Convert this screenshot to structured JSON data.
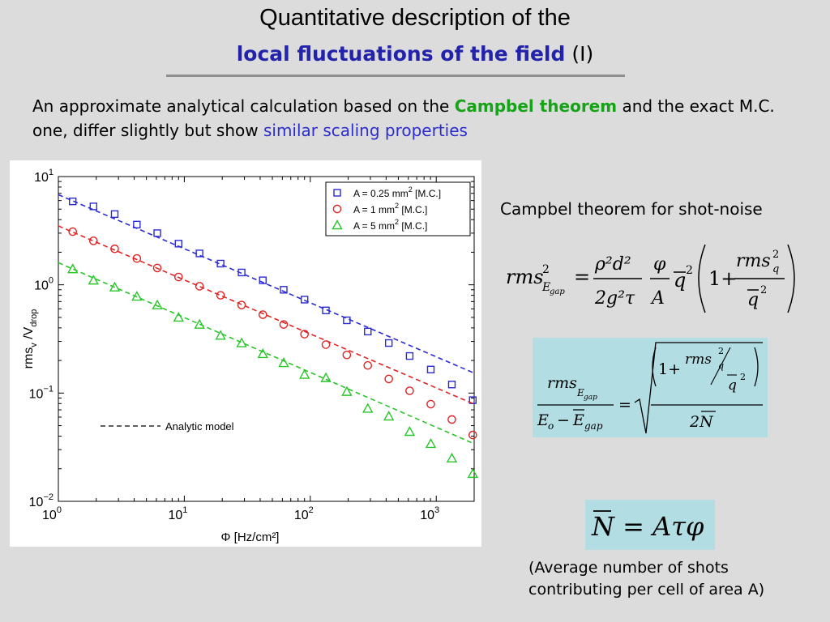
{
  "slide": {
    "title_line1": "Quantitative description of the",
    "title_line2_highlight": "local fluctuations of the field",
    "title_line2_suffix": "(I)",
    "intro_part1": "An approximate analytical calculation based on the ",
    "intro_green": "Campbel theorem",
    "intro_part2": " and the exact M.C. one, differ slightly but show ",
    "intro_blue": "similar scaling properties",
    "campbel_heading": "Campbel theorem for shot-noise",
    "note_line1": "(Average number of shots",
    "note_line2": "contributing per cell of area A)"
  },
  "formulas": {
    "f1_lhs": "rms",
    "f1_lhs_sub": "E",
    "f1_lhs_subsub": "gap",
    "f1_lhs_sup": "2",
    "f1_num1": "ρ²d²",
    "f1_den1": "2g²τ",
    "f1_num2": "φ",
    "f1_den2": "A",
    "f1_qbar": "q",
    "f1_qbar_exp": "2",
    "f1_one_plus": "1+",
    "f1_inner_num": "rms",
    "f1_inner_num_sub": "q",
    "f1_inner_num_sup": "2",
    "f1_inner_den": "q",
    "f1_inner_den_exp": "2",
    "f2_num": "rms",
    "f2_num_sub": "E",
    "f2_num_subsub": "gap",
    "f2_den_a": "E",
    "f2_den_a_sub": "o",
    "f2_den_minus": "−",
    "f2_den_b": "E",
    "f2_den_b_sub": "gap",
    "f2_sqrt_num_rms": "rms",
    "f2_sqrt_num_rms_sub": "q",
    "f2_sqrt_num_rms_sup": "2",
    "f2_sqrt_num_q": "q",
    "f2_sqrt_num_q_exp": "2",
    "f2_one_plus": "1+",
    "f2_sqrt_den": "2N",
    "f3": "N = Aτφ"
  },
  "chart_data": {
    "type": "scatter",
    "x_scale": "log",
    "y_scale": "log",
    "xlim": [
      1,
      2000
    ],
    "ylim": [
      0.01,
      10
    ],
    "xlabel": "Φ [Hz/cm²]",
    "ylabel_main": "rms",
    "ylabel_sub": "v",
    "ylabel_mid": " /V",
    "ylabel_sub2": "drop",
    "x_ticks": [
      {
        "value": 1,
        "base": "10",
        "exp": "0"
      },
      {
        "value": 10,
        "base": "10",
        "exp": "1"
      },
      {
        "value": 100,
        "base": "10",
        "exp": "2"
      },
      {
        "value": 1000,
        "base": "10",
        "exp": "3"
      }
    ],
    "y_ticks": [
      {
        "value": 0.01,
        "base": "10",
        "exp": "−2"
      },
      {
        "value": 0.1,
        "base": "10",
        "exp": "−1"
      },
      {
        "value": 1,
        "base": "10",
        "exp": "0"
      },
      {
        "value": 10,
        "base": "10",
        "exp": "1"
      }
    ],
    "legend_position": "top-right",
    "model_label": "Analytic model",
    "x": [
      1.3,
      1.9,
      2.8,
      4.2,
      6.1,
      9.0,
      13.2,
      19.4,
      28.5,
      42,
      61.5,
      90,
      133,
      195,
      286,
      420,
      615,
      905,
      1330,
      1950
    ],
    "series": [
      {
        "name": "A = 0.25 mm² [M.C.]",
        "legend_a": "A = 0.25 mm",
        "legend_sup": "2",
        "legend_b": " [M.C.]",
        "marker": "square",
        "color": "#2b2bd6",
        "values": [
          5.9,
          5.3,
          4.5,
          3.6,
          3.0,
          2.4,
          1.95,
          1.57,
          1.3,
          1.1,
          0.9,
          0.73,
          0.58,
          0.47,
          0.37,
          0.29,
          0.22,
          0.165,
          0.12,
          0.086
        ],
        "model": {
          "y_at_1": 6.8,
          "y_at_2000": 0.153
        }
      },
      {
        "name": "A = 1 mm² [M.C.]",
        "legend_a": "A = 1      mm",
        "legend_sup": "2",
        "legend_b": " [M.C.]",
        "marker": "circle",
        "color": "#e02424",
        "values": [
          3.1,
          2.55,
          2.15,
          1.75,
          1.43,
          1.18,
          0.97,
          0.8,
          0.65,
          0.53,
          0.43,
          0.35,
          0.28,
          0.225,
          0.18,
          0.135,
          0.105,
          0.079,
          0.057,
          0.041
        ],
        "model": {
          "y_at_1": 3.5,
          "y_at_2000": 0.079
        }
      },
      {
        "name": "A = 5 mm² [M.C.]",
        "legend_a": "A = 5      mm",
        "legend_sup": "2",
        "legend_b": " [M.C.]",
        "marker": "triangle",
        "color": "#2ac52a",
        "values": [
          1.4,
          1.1,
          0.95,
          0.78,
          0.65,
          0.5,
          0.43,
          0.34,
          0.29,
          0.23,
          0.19,
          0.148,
          0.138,
          0.103,
          0.072,
          0.061,
          0.044,
          0.034,
          0.025,
          0.018
        ],
        "model": {
          "y_at_1": 1.6,
          "y_at_2000": 0.034
        }
      }
    ]
  }
}
